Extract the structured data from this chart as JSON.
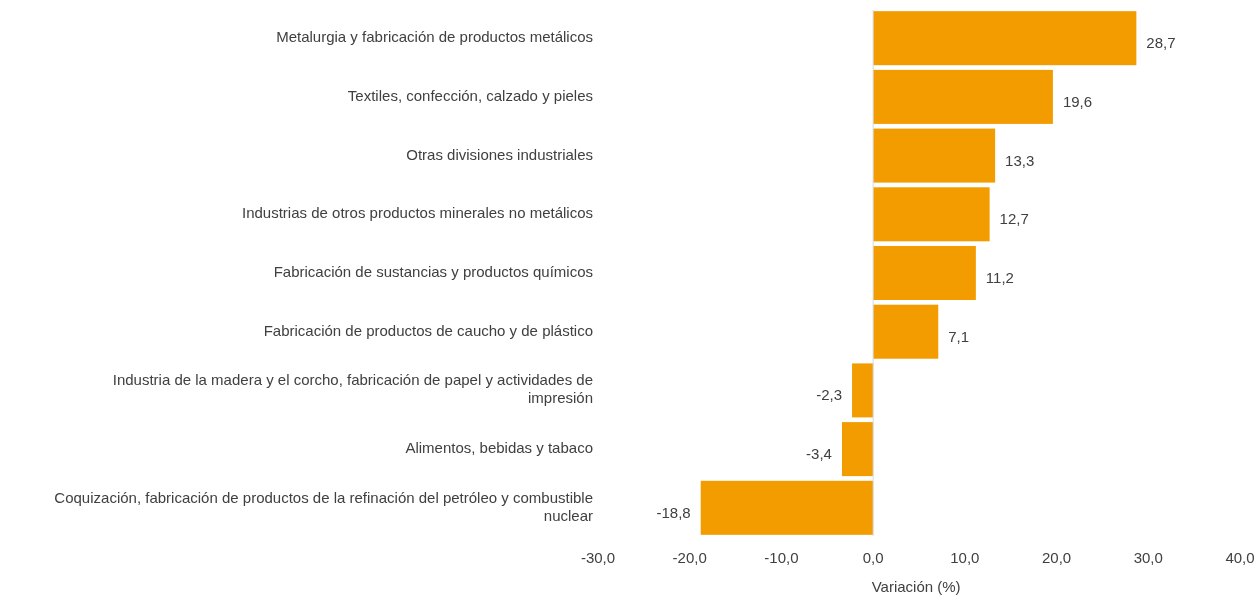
{
  "chart_data": {
    "type": "bar",
    "orientation": "horizontal",
    "xlabel": "Variación (%)",
    "categories": [
      "Metalurgia y fabricación de productos metálicos",
      "Textiles, confección, calzado y pieles",
      "Otras divisiones industriales",
      "Industrias de otros productos minerales no metálicos",
      "Fabricación de sustancias y productos químicos",
      "Fabricación de productos de caucho y de plástico",
      "Industria de la madera y el corcho, fabricación de papel y actividades de impresión",
      "Alimentos, bebidas y tabaco",
      "Coquización, fabricación de productos de la refinación del petróleo y combustible nuclear"
    ],
    "values": [
      28.7,
      19.6,
      13.3,
      12.7,
      11.2,
      7.1,
      -2.3,
      -3.4,
      -18.8
    ],
    "value_labels": [
      "28,7",
      "19,6",
      "13,3",
      "12,7",
      "11,2",
      "7,1",
      "-2,3",
      "-3,4",
      "-18,8"
    ],
    "color": "#f29c00",
    "xlim": [
      -30,
      40
    ],
    "xticks": [
      {
        "value": -30,
        "label": "-30,0"
      },
      {
        "value": -20,
        "label": "-20,0"
      },
      {
        "value": -10,
        "label": "-10,0"
      },
      {
        "value": 0,
        "label": "0,0"
      },
      {
        "value": 10,
        "label": "10,0"
      },
      {
        "value": 20,
        "label": "20,0"
      },
      {
        "value": 30,
        "label": "30,0"
      },
      {
        "value": 40,
        "label": "40,0"
      }
    ],
    "tick_labels": "x"
  }
}
